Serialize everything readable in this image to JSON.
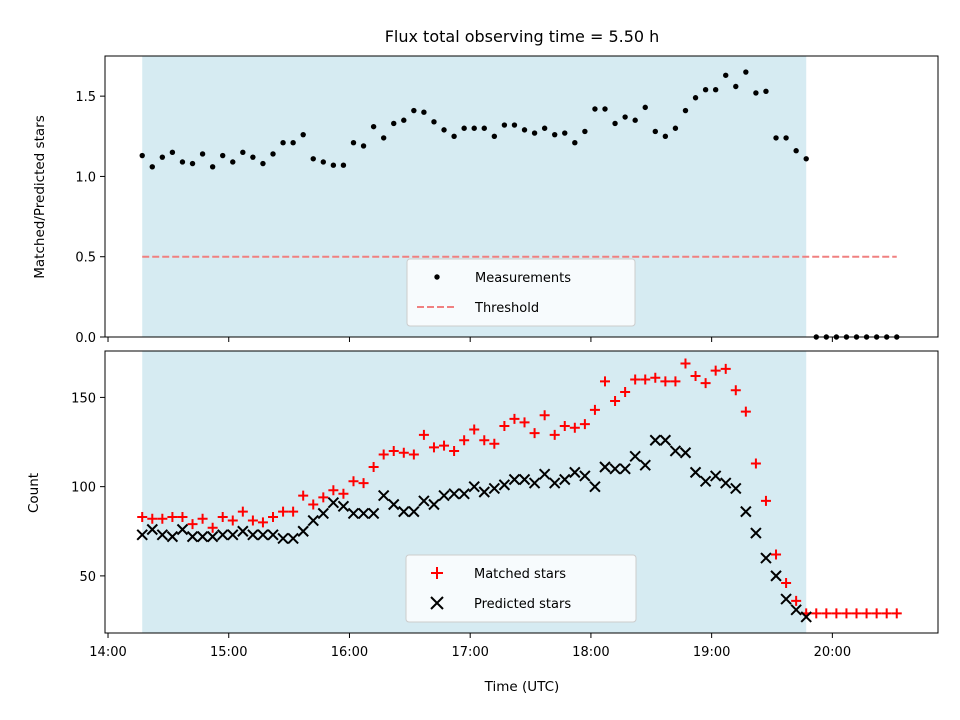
{
  "chart_data": {
    "title": "Flux total observing time = 5.50 h",
    "x_tick_labels": [
      "14:00",
      "15:00",
      "16:00",
      "17:00",
      "18:00",
      "19:00",
      "20:00"
    ],
    "xlabel": "Time (UTC)",
    "observing_window": [
      "14:17",
      "19:47"
    ],
    "grid": false,
    "x_unit": "time (UTC, HH:MM)",
    "top_panel": {
      "type": "scatter",
      "ylabel": "Matched/Predicted stars",
      "ylim": [
        0,
        1.75
      ],
      "yticks": [
        "0.0",
        "0.5",
        "1.0",
        "1.5"
      ],
      "legend_position": "lower-center",
      "threshold": {
        "name": "Threshold",
        "value": 0.5,
        "x_range": [
          "14:17",
          "20:32"
        ],
        "color": "#f08080"
      },
      "measurements": {
        "name": "Measurements",
        "color": "#000000",
        "x": [
          "14:17",
          "14:22",
          "14:27",
          "14:32",
          "14:37",
          "14:42",
          "14:47",
          "14:52",
          "14:57",
          "15:02",
          "15:07",
          "15:12",
          "15:17",
          "15:22",
          "15:27",
          "15:32",
          "15:37",
          "15:42",
          "15:47",
          "15:52",
          "15:57",
          "16:02",
          "16:07",
          "16:12",
          "16:17",
          "16:22",
          "16:27",
          "16:32",
          "16:37",
          "16:42",
          "16:47",
          "16:52",
          "16:57",
          "17:02",
          "17:07",
          "17:12",
          "17:17",
          "17:22",
          "17:27",
          "17:32",
          "17:37",
          "17:42",
          "17:47",
          "17:52",
          "17:57",
          "18:02",
          "18:07",
          "18:12",
          "18:17",
          "18:22",
          "18:27",
          "18:32",
          "18:37",
          "18:42",
          "18:47",
          "18:52",
          "18:57",
          "19:02",
          "19:07",
          "19:12",
          "19:17",
          "19:22",
          "19:27",
          "19:32",
          "19:37",
          "19:42",
          "19:47",
          "19:52",
          "19:57",
          "20:02",
          "20:07",
          "20:12",
          "20:17",
          "20:22",
          "20:27",
          "20:32"
        ],
        "y": [
          1.13,
          1.06,
          1.12,
          1.15,
          1.09,
          1.08,
          1.14,
          1.06,
          1.13,
          1.09,
          1.15,
          1.12,
          1.08,
          1.14,
          1.21,
          1.21,
          1.26,
          1.11,
          1.09,
          1.07,
          1.07,
          1.21,
          1.19,
          1.31,
          1.24,
          1.33,
          1.35,
          1.41,
          1.4,
          1.34,
          1.29,
          1.25,
          1.3,
          1.3,
          1.3,
          1.25,
          1.32,
          1.32,
          1.29,
          1.27,
          1.3,
          1.26,
          1.27,
          1.21,
          1.28,
          1.42,
          1.42,
          1.33,
          1.37,
          1.35,
          1.43,
          1.28,
          1.25,
          1.3,
          1.41,
          1.49,
          1.54,
          1.54,
          1.63,
          1.56,
          1.65,
          1.52,
          1.53,
          1.24,
          1.24,
          1.16,
          1.11,
          0.0,
          0.0,
          0.0,
          0.0,
          0.0,
          0.0,
          0.0,
          0.0,
          0.0
        ]
      }
    },
    "bottom_panel": {
      "type": "scatter",
      "ylabel": "Count",
      "ylim": [
        18,
        176
      ],
      "yticks": [
        "50",
        "100",
        "150"
      ],
      "legend_position": "lower-center",
      "series": [
        {
          "name": "Matched stars",
          "marker": "+",
          "color": "#ff0000",
          "x": [
            "14:17",
            "14:22",
            "14:27",
            "14:32",
            "14:37",
            "14:42",
            "14:47",
            "14:52",
            "14:57",
            "15:02",
            "15:07",
            "15:12",
            "15:17",
            "15:22",
            "15:27",
            "15:32",
            "15:37",
            "15:42",
            "15:47",
            "15:52",
            "15:57",
            "16:02",
            "16:07",
            "16:12",
            "16:17",
            "16:22",
            "16:27",
            "16:32",
            "16:37",
            "16:42",
            "16:47",
            "16:52",
            "16:57",
            "17:02",
            "17:07",
            "17:12",
            "17:17",
            "17:22",
            "17:27",
            "17:32",
            "17:37",
            "17:42",
            "17:47",
            "17:52",
            "17:57",
            "18:02",
            "18:07",
            "18:12",
            "18:17",
            "18:22",
            "18:27",
            "18:32",
            "18:37",
            "18:42",
            "18:47",
            "18:52",
            "18:57",
            "19:02",
            "19:07",
            "19:12",
            "19:17",
            "19:22",
            "19:27",
            "19:32",
            "19:37",
            "19:42",
            "19:47",
            "19:52",
            "19:57",
            "20:02",
            "20:07",
            "20:12",
            "20:17",
            "20:22",
            "20:27",
            "20:32"
          ],
          "y": [
            83,
            82,
            82,
            83,
            83,
            79,
            82,
            77,
            83,
            81,
            86,
            81,
            80,
            83,
            86,
            86,
            95,
            90,
            94,
            98,
            96,
            103,
            102,
            111,
            118,
            120,
            119,
            118,
            129,
            122,
            123,
            120,
            126,
            132,
            126,
            124,
            134,
            138,
            136,
            130,
            140,
            129,
            134,
            133,
            135,
            143,
            159,
            148,
            153,
            160,
            160,
            161,
            159,
            159,
            169,
            162,
            158,
            165,
            166,
            154,
            142,
            113,
            92,
            62,
            46,
            36,
            29,
            29,
            29,
            29,
            29,
            29,
            29,
            29,
            29,
            29
          ]
        },
        {
          "name": "Predicted stars",
          "marker": "x",
          "color": "#000000",
          "x": [
            "14:17",
            "14:22",
            "14:27",
            "14:32",
            "14:37",
            "14:42",
            "14:47",
            "14:52",
            "14:57",
            "15:02",
            "15:07",
            "15:12",
            "15:17",
            "15:22",
            "15:27",
            "15:32",
            "15:37",
            "15:42",
            "15:47",
            "15:52",
            "15:57",
            "16:02",
            "16:07",
            "16:12",
            "16:17",
            "16:22",
            "16:27",
            "16:32",
            "16:37",
            "16:42",
            "16:47",
            "16:52",
            "16:57",
            "17:02",
            "17:07",
            "17:12",
            "17:17",
            "17:22",
            "17:27",
            "17:32",
            "17:37",
            "17:42",
            "17:47",
            "17:52",
            "17:57",
            "18:02",
            "18:07",
            "18:12",
            "18:17",
            "18:22",
            "18:27",
            "18:32",
            "18:37",
            "18:42",
            "18:47",
            "18:52",
            "18:57",
            "19:02",
            "19:07",
            "19:12",
            "19:17",
            "19:22",
            "19:27",
            "19:32",
            "19:37",
            "19:42",
            "19:47"
          ],
          "y": [
            73,
            76,
            73,
            72,
            76,
            72,
            72,
            72,
            73,
            73,
            75,
            73,
            73,
            73,
            71,
            71,
            75,
            81,
            85,
            91,
            89,
            85,
            85,
            85,
            95,
            90,
            86,
            86,
            92,
            90,
            95,
            96,
            96,
            100,
            97,
            99,
            101,
            104,
            104,
            102,
            107,
            102,
            104,
            108,
            106,
            100,
            111,
            110,
            110,
            117,
            112,
            126,
            126,
            120,
            119,
            108,
            103,
            106,
            102,
            99,
            86,
            74,
            60,
            50,
            37,
            31,
            27
          ]
        }
      ]
    }
  }
}
